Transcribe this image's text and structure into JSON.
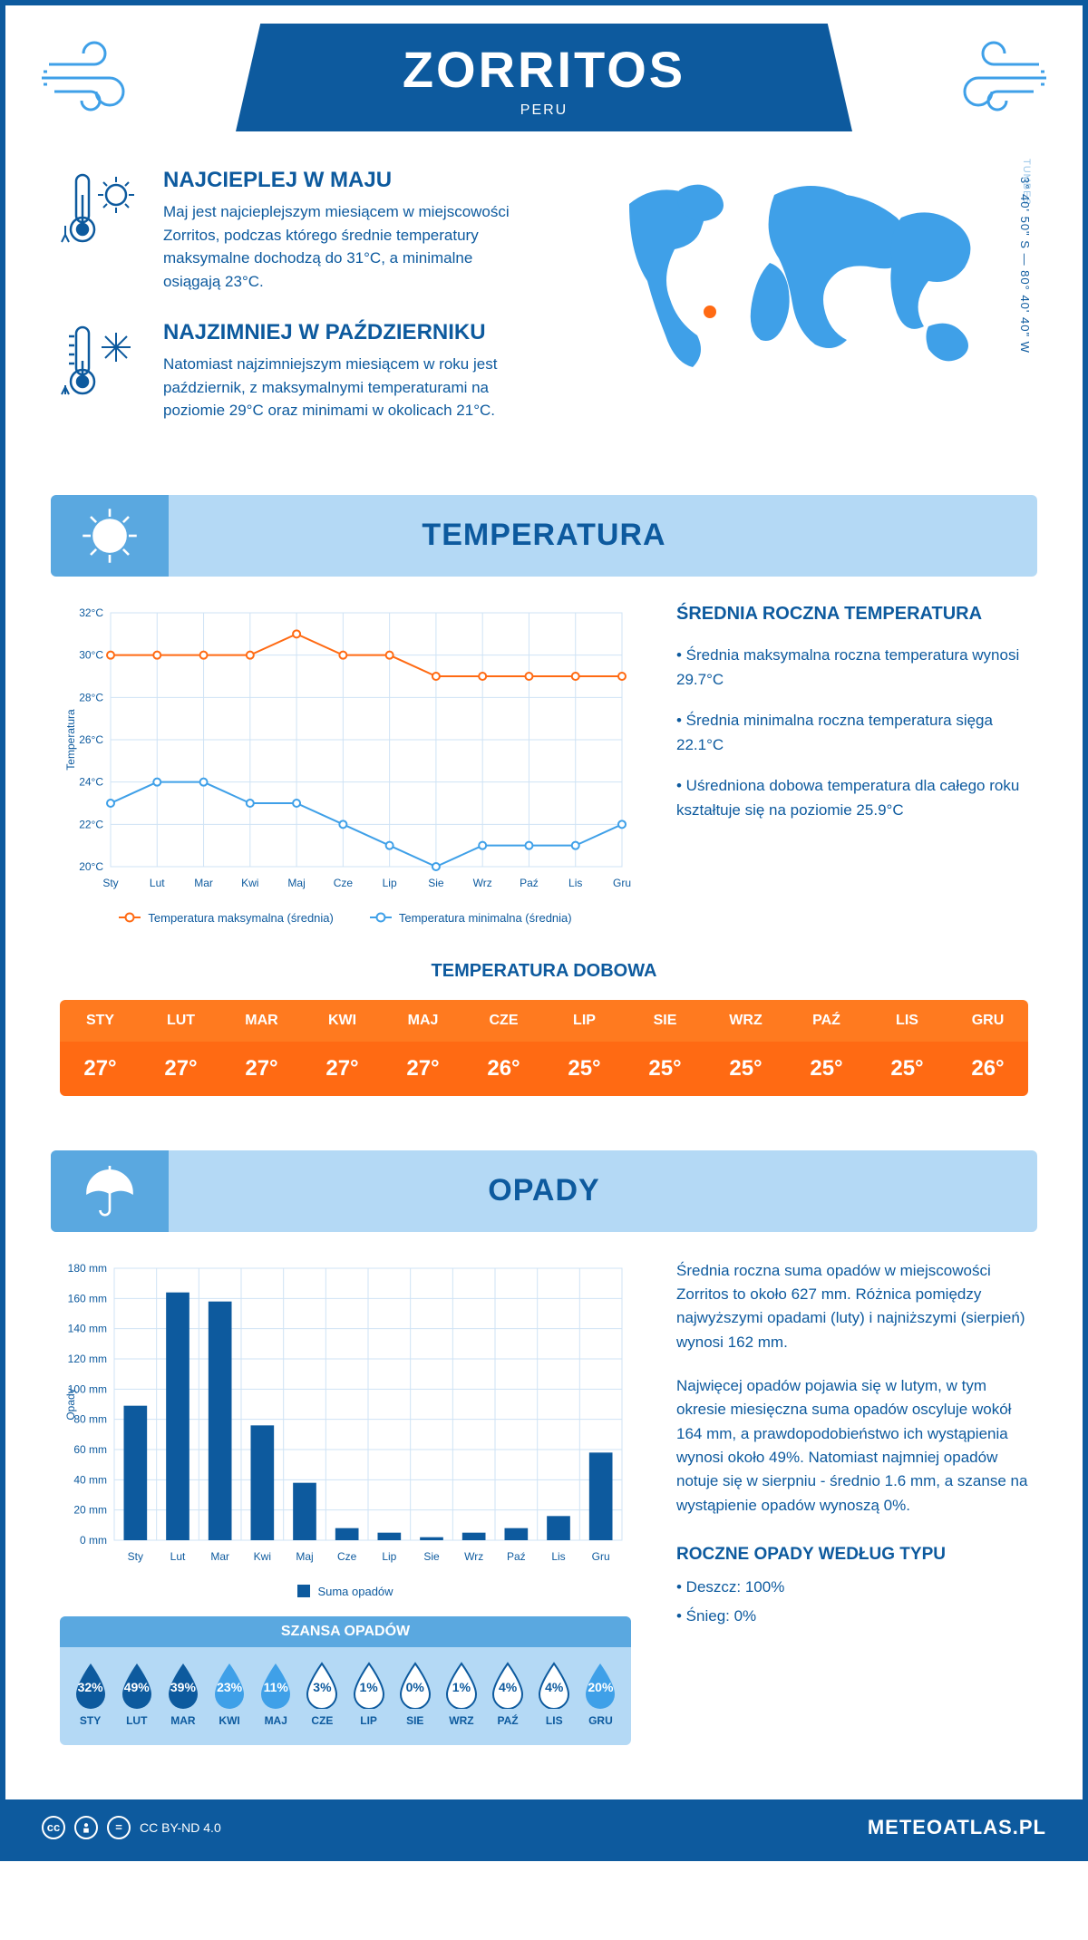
{
  "header": {
    "title": "ZORRITOS",
    "subtitle": "PERU"
  },
  "intro": {
    "warm": {
      "title": "NAJCIEPLEJ W MAJU",
      "text": "Maj jest najcieplejszym miesiącem w miejscowości Zorritos, podczas którego średnie temperatury maksymalne dochodzą do 31°C, a minimalne osiągają 23°C."
    },
    "cold": {
      "title": "NAJZIMNIEJ W PAŹDZIERNIKU",
      "text": "Natomiast najzimniejszym miesiącem w roku jest październik, z maksymalnymi temperaturami na poziomie 29°C oraz minimami w okolicach 21°C."
    },
    "coords": "3° 40' 50\" S — 80° 40' 40\" W",
    "region": "TUMBES"
  },
  "temp_section_title": "TEMPERATURA",
  "months_short": [
    "Sty",
    "Lut",
    "Mar",
    "Kwi",
    "Maj",
    "Cze",
    "Lip",
    "Sie",
    "Wrz",
    "Paź",
    "Lis",
    "Gru"
  ],
  "temp_chart": {
    "type": "line",
    "ylabel": "Temperatura",
    "ylim": [
      20,
      32
    ],
    "ytick_step": 2,
    "ytick_suffix": "°C",
    "grid_color": "#cfe3f5",
    "max_series": {
      "label": "Temperatura maksymalna (średnia)",
      "color": "#ff6a13",
      "values": [
        30,
        30,
        30,
        30,
        31,
        30,
        30,
        29,
        29,
        29,
        29,
        29
      ]
    },
    "min_series": {
      "label": "Temperatura minimalna (średnia)",
      "color": "#3fa0e8",
      "values": [
        23,
        24,
        24,
        23,
        23,
        22,
        21,
        20,
        21,
        21,
        21,
        22
      ]
    }
  },
  "temp_info": {
    "title": "ŚREDNIA ROCZNA TEMPERATURA",
    "bullets": [
      "• Średnia maksymalna roczna temperatura wynosi 29.7°C",
      "• Średnia minimalna roczna temperatura sięga 22.1°C",
      "• Uśredniona dobowa temperatura dla całego roku kształtuje się na poziomie 25.9°C"
    ]
  },
  "daily_temp": {
    "title": "TEMPERATURA DOBOWA",
    "months": [
      "STY",
      "LUT",
      "MAR",
      "KWI",
      "MAJ",
      "CZE",
      "LIP",
      "SIE",
      "WRZ",
      "PAŹ",
      "LIS",
      "GRU"
    ],
    "values": [
      "27°",
      "27°",
      "27°",
      "27°",
      "27°",
      "26°",
      "25°",
      "25°",
      "25°",
      "25°",
      "25°",
      "26°"
    ],
    "header_bg": "#ff7a1f",
    "value_bg": "#ff6a13"
  },
  "precip_section_title": "OPADY",
  "precip_chart": {
    "type": "bar",
    "ylabel": "Opady",
    "ylim": [
      0,
      180
    ],
    "ytick_step": 20,
    "ytick_suffix": " mm",
    "bar_color": "#0d5a9e",
    "grid_color": "#cfe3f5",
    "legend_label": "Suma opadów",
    "values": [
      89,
      164,
      158,
      76,
      38,
      8,
      5,
      2,
      5,
      8,
      16,
      58
    ]
  },
  "precip_info": {
    "p1": "Średnia roczna suma opadów w miejscowości Zorritos to około 627 mm. Różnica pomiędzy najwyższymi opadami (luty) i najniższymi (sierpień) wynosi 162 mm.",
    "p2": "Najwięcej opadów pojawia się w lutym, w tym okresie miesięczna suma opadów oscyluje wokół 164 mm, a prawdopodobieństwo ich wystąpienia wynosi około 49%. Natomiast najmniej opadów notuje się w sierpniu - średnio 1.6 mm, a szanse na wystąpienie opadów wynoszą 0%.",
    "type_title": "ROCZNE OPADY WEDŁUG TYPU",
    "type_bullets": [
      "• Deszcz: 100%",
      "• Śnieg: 0%"
    ]
  },
  "chance": {
    "title": "SZANSA OPADÓW",
    "months": [
      "STY",
      "LUT",
      "MAR",
      "KWI",
      "MAJ",
      "CZE",
      "LIP",
      "SIE",
      "WRZ",
      "PAŹ",
      "LIS",
      "GRU"
    ],
    "values": [
      32,
      49,
      39,
      23,
      11,
      3,
      1,
      0,
      1,
      4,
      4,
      20
    ],
    "fill_color_high": "#0d5a9e",
    "fill_color_mid": "#3fa0e8",
    "fill_color_low": "#ffffff"
  },
  "footer": {
    "license": "CC BY-ND 4.0",
    "site": "METEOATLAS.PL"
  }
}
